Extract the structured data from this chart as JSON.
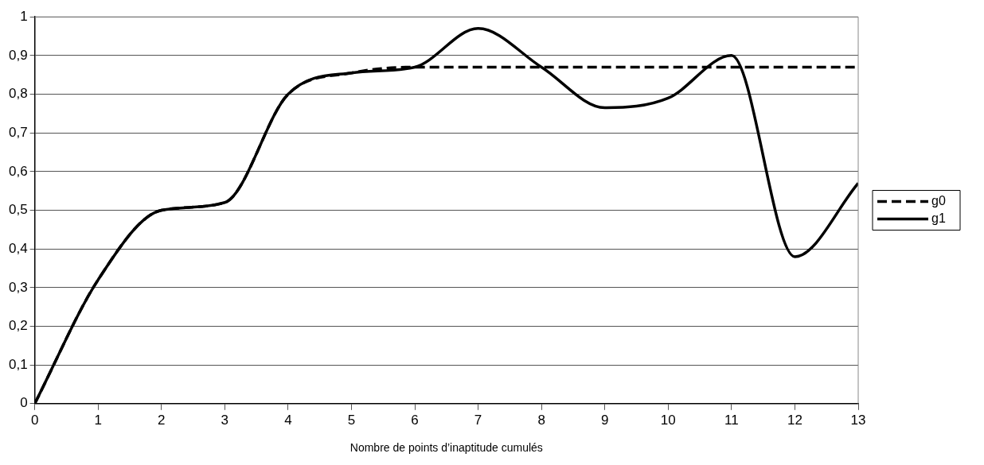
{
  "chart_data": {
    "type": "line",
    "xlabel": "Nombre de points d’inaptitude cumulés",
    "x": [
      0,
      1,
      2,
      3,
      4,
      5,
      6,
      7,
      8,
      9,
      10,
      11,
      12,
      13
    ],
    "series": [
      {
        "name": "g0",
        "color": "#000000",
        "line_style": "dashed",
        "values": [
          0,
          0.32,
          0.5,
          0.52,
          0.8,
          0.855,
          0.87,
          0.87,
          0.87,
          0.87,
          0.87,
          0.87,
          0.87,
          0.87
        ]
      },
      {
        "name": "g1",
        "color": "#000000",
        "line_style": "solid",
        "values": [
          0,
          0.32,
          0.5,
          0.52,
          0.8,
          0.855,
          0.87,
          0.97,
          0.87,
          0.765,
          0.79,
          0.9,
          0.38,
          0.57
        ]
      }
    ],
    "xlim": [
      0,
      13
    ],
    "xticks": [
      0,
      1,
      2,
      3,
      4,
      5,
      6,
      7,
      8,
      9,
      10,
      11,
      12,
      13
    ],
    "ylim": [
      0,
      1
    ],
    "yticks": [
      0,
      {
        "value": 0.1,
        "label": "0,1"
      },
      {
        "value": 0.2,
        "label": "0,2"
      },
      {
        "value": 0.3,
        "label": "0,3"
      },
      {
        "value": 0.4,
        "label": "0,4"
      },
      {
        "value": 0.5,
        "label": "0,5"
      },
      {
        "value": 0.6,
        "label": "0,6"
      },
      {
        "value": 0.7,
        "label": "0,7"
      },
      {
        "value": 0.8,
        "label": "0,8"
      },
      {
        "value": 0.9,
        "label": "0,9"
      },
      1
    ],
    "grid": "y",
    "legend": "right",
    "marker": "none"
  }
}
